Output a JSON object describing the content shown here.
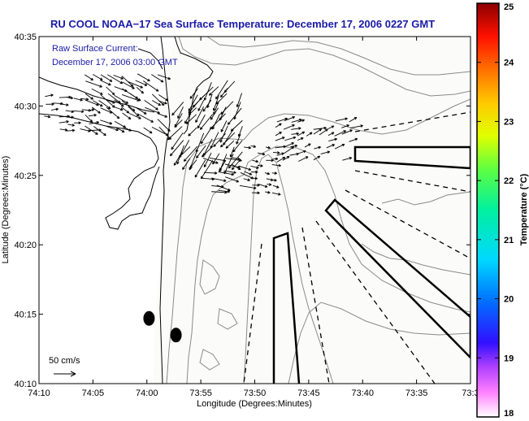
{
  "title": "RU COOL  NOAA−17  Sea Surface Temperature:  December 17, 2006 0227 GMT",
  "inset": {
    "line1": "Raw Surface Current:",
    "line2": "December 17, 2006 03:00 GMT"
  },
  "scale_label": "50 cm/s",
  "colorbar": {
    "label": "Temperature (°C)",
    "min": 18,
    "max": 25,
    "ticks": [
      "18",
      "19",
      "20",
      "21",
      "22",
      "23",
      "24",
      "25"
    ]
  },
  "chart_data": {
    "type": "map",
    "xlabel": "Longitude (Degrees:Minutes)",
    "ylabel": "Latitude (Degrees:Minutes)",
    "x_ticks": [
      "74:10",
      "74:05",
      "74:00",
      "73:55",
      "73:50",
      "73:45",
      "73:40",
      "73:35",
      "73:3"
    ],
    "y_ticks": [
      "40:10",
      "40:15",
      "40:20",
      "40:25",
      "40:30",
      "40:35"
    ],
    "xlim_minutes_west": [
      10,
      30
    ],
    "ylim_minutes_north": [
      10,
      35
    ],
    "sst_visible": false,
    "buoys": [
      {
        "lon_min": 59.8,
        "lat_min": 14.7
      },
      {
        "lon_min": 57.3,
        "lat_min": 13.5
      }
    ]
  }
}
